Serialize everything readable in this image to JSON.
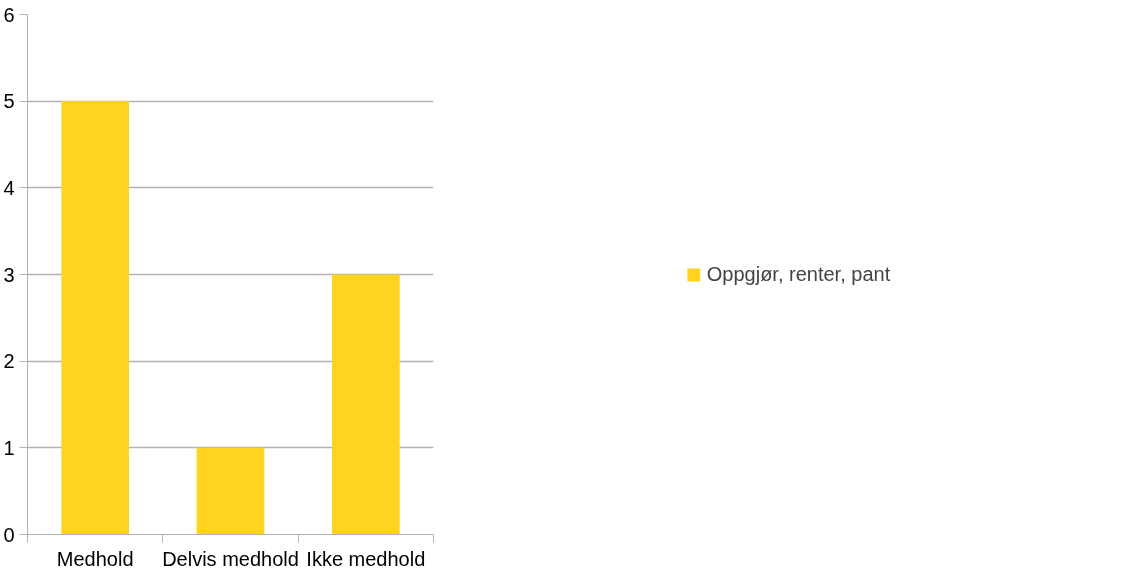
{
  "chart_data": {
    "type": "bar",
    "categories": [
      "Medhold",
      "Delvis medhold",
      "Ikke medhold"
    ],
    "series": [
      {
        "name": "Oppgjør, renter, pant",
        "color": "#ffd320",
        "values": [
          5,
          1,
          3
        ]
      }
    ],
    "ylim": [
      0,
      6
    ],
    "yticks": [
      0,
      1,
      2,
      3,
      4,
      5,
      6
    ],
    "grid": "y",
    "legend": "right"
  }
}
